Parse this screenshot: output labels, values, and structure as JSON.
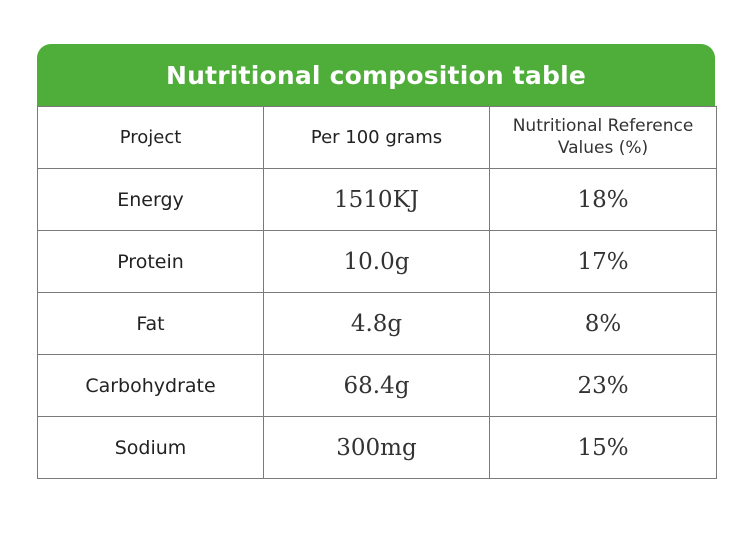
{
  "title": "Nutritional composition table",
  "headers": {
    "project": "Project",
    "per_100g": "Per 100 grams",
    "reference": "Nutritional Reference Values (%)"
  },
  "rows": [
    {
      "project": "Energy",
      "per_100g": "1510KJ",
      "reference": "18%"
    },
    {
      "project": "Protein",
      "per_100g": "10.0g",
      "reference": "17%"
    },
    {
      "project": "Fat",
      "per_100g": "4.8g",
      "reference": "8%"
    },
    {
      "project": "Carbohydrate",
      "per_100g": "68.4g",
      "reference": "23%"
    },
    {
      "project": "Sodium",
      "per_100g": "300mg",
      "reference": "15%"
    }
  ],
  "colors": {
    "header_green": "#4fad3a",
    "title_text": "#ffffff",
    "border": "#7a7a7a"
  }
}
